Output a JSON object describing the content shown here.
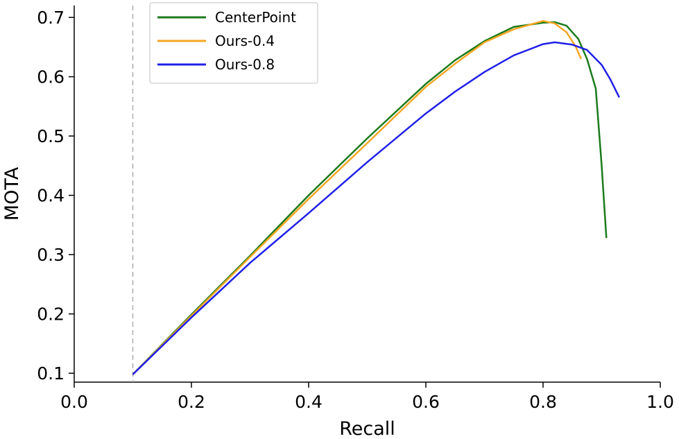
{
  "chart_data": {
    "type": "line",
    "title": "",
    "xlabel": "Recall",
    "ylabel": "MOTA",
    "xlim": [
      0.0,
      1.0
    ],
    "ylim": [
      0.085,
      0.72
    ],
    "xticks": [
      "0.0",
      "0.2",
      "0.4",
      "0.6",
      "0.8",
      "1.0"
    ],
    "yticks": [
      "0.1",
      "0.2",
      "0.3",
      "0.4",
      "0.5",
      "0.6",
      "0.7"
    ],
    "xtick_values": [
      0.0,
      0.2,
      0.4,
      0.6,
      0.8,
      1.0
    ],
    "ytick_values": [
      0.1,
      0.2,
      0.3,
      0.4,
      0.5,
      0.6,
      0.7
    ],
    "grid": false,
    "legend_position": "top-left",
    "reference_line": {
      "orientation": "vertical",
      "x": 0.1,
      "style": "dashed",
      "color": "#aaaaaa"
    },
    "series": [
      {
        "name": "CenterPoint",
        "color": "#1a7a1a",
        "x": [
          0.1,
          0.2,
          0.3,
          0.4,
          0.5,
          0.6,
          0.65,
          0.7,
          0.75,
          0.8,
          0.82,
          0.84,
          0.86,
          0.875,
          0.89,
          0.9,
          0.908
        ],
        "y": [
          0.098,
          0.199,
          0.298,
          0.4,
          0.496,
          0.588,
          0.628,
          0.66,
          0.684,
          0.691,
          0.692,
          0.686,
          0.664,
          0.63,
          0.58,
          0.45,
          0.328
        ]
      },
      {
        "name": "Ours-0.4",
        "color": "#f5a623",
        "x": [
          0.1,
          0.2,
          0.3,
          0.4,
          0.5,
          0.6,
          0.65,
          0.7,
          0.75,
          0.8,
          0.82,
          0.84,
          0.855,
          0.865
        ],
        "y": [
          0.098,
          0.197,
          0.296,
          0.394,
          0.488,
          0.583,
          0.622,
          0.658,
          0.68,
          0.694,
          0.69,
          0.675,
          0.652,
          0.63
        ]
      },
      {
        "name": "Ours-0.8",
        "color": "#1f1fe8",
        "x": [
          0.1,
          0.2,
          0.3,
          0.4,
          0.5,
          0.6,
          0.65,
          0.7,
          0.75,
          0.8,
          0.82,
          0.85,
          0.875,
          0.9,
          0.915,
          0.93
        ],
        "y": [
          0.098,
          0.194,
          0.286,
          0.37,
          0.456,
          0.538,
          0.575,
          0.608,
          0.636,
          0.655,
          0.658,
          0.654,
          0.645,
          0.62,
          0.595,
          0.565
        ]
      }
    ]
  }
}
